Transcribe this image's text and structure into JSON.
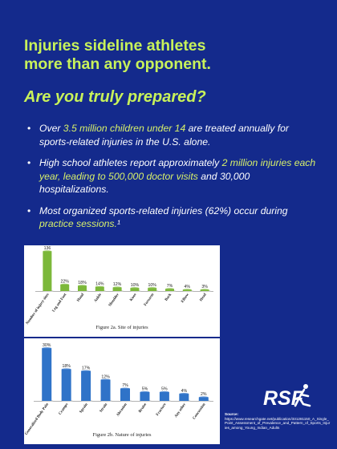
{
  "headline": {
    "line1": "Injuries sideline athletes",
    "line2": "more than any opponent."
  },
  "subheadline": "Are you truly prepared?",
  "bullets": [
    {
      "a": "Over ",
      "hl": "3.5 million children under 14",
      "b": " are treated annually for sports-related injuries in the U.S. alone."
    },
    {
      "a": "High school athletes report approximately ",
      "hl": "2 million injuries each year, leading to 500,000 doctor visits",
      "b": " and 30,000 hospitalizations."
    },
    {
      "a": "Most organized sports-related injuries (62%) occur during ",
      "hl": "practice sessions.",
      "b": "¹"
    }
  ],
  "chart_data": [
    {
      "type": "bar",
      "title": "Figure  2a. Site of injuries",
      "categories": [
        "Number of injury sites",
        "Leg and Foot",
        "Hand",
        "Ankle",
        "Shoulder",
        "Knee",
        "Forearm",
        "Back",
        "Elbow",
        "Head"
      ],
      "values": [
        136,
        22,
        18,
        14,
        12,
        10,
        10,
        7,
        4,
        3
      ],
      "labels": [
        "136",
        "22%",
        "18%",
        "14%",
        "12%",
        "10%",
        "10%",
        "7%",
        "4%",
        "3%"
      ],
      "color": "#7cb83a",
      "ylim": [
        0,
        140
      ]
    },
    {
      "type": "bar",
      "title": "Figure  2b. Nature of injuries",
      "categories": [
        "Generalized Body Pain",
        "Cramps",
        "Sprain",
        "Strain",
        "Abrasion",
        "Bruise",
        "Fracture",
        "Any other",
        "Concussion"
      ],
      "values": [
        30,
        18,
        17,
        12,
        7,
        5,
        5,
        4,
        2
      ],
      "labels": [
        "30%",
        "18%",
        "17%",
        "12%",
        "7%",
        "5%",
        "5%",
        "4%",
        "2%"
      ],
      "color": "#2f73c8",
      "ylim": [
        0,
        32
      ]
    }
  ],
  "logo": {
    "text": "RSF"
  },
  "source": {
    "label": "Source:",
    "url": "https://www.researchgate.net/publication/331281150_A_Single_Point_Assessment_of_Prevalence_and_Pattern_of_Sports_Injuries_among_Young_Indian_Adults"
  },
  "colors": {
    "background": "#142a8c",
    "accent": "#c8f25a",
    "highlight": "#d7f06a"
  }
}
